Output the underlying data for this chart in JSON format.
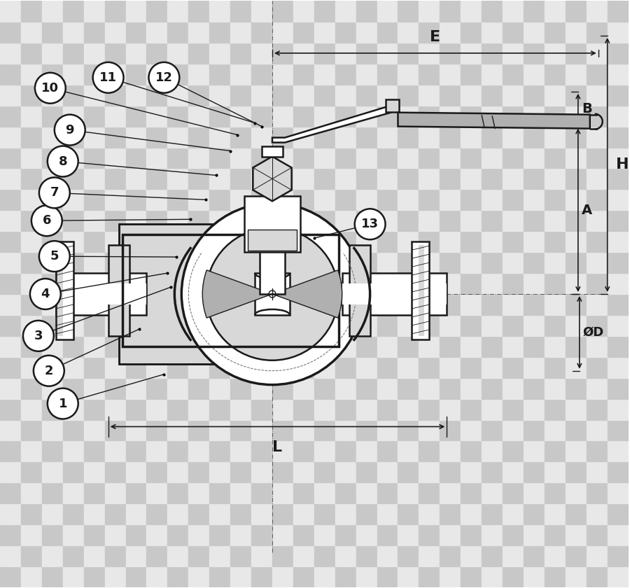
{
  "bg_color": "#ffffff",
  "line_color": "#1a1a1a",
  "gray_fill": "#b0b0b0",
  "light_gray": "#d8d8d8",
  "checker_color": "#cccccc",
  "labels": [
    "1",
    "2",
    "3",
    "4",
    "5",
    "6",
    "7",
    "8",
    "9",
    "10",
    "11",
    "12",
    "13"
  ],
  "dim_labels": [
    "E",
    "B",
    "H",
    "A",
    "L",
    "D"
  ],
  "figsize": [
    9.0,
    8.4
  ],
  "dpi": 100
}
